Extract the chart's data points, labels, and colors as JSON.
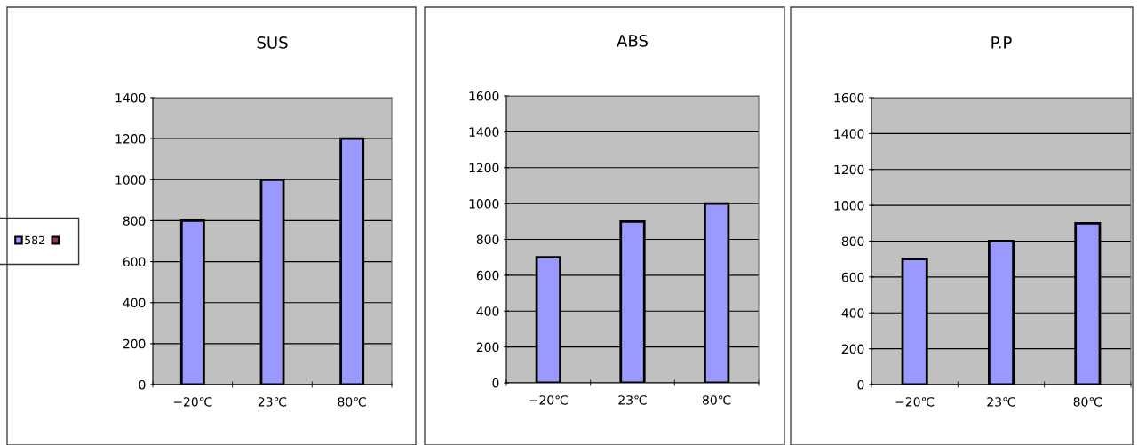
{
  "chart_data": [
    {
      "type": "bar",
      "title": "SUS",
      "categories": [
        "−20℃",
        "23℃",
        "80℃"
      ],
      "series": [
        {
          "name": "582",
          "color": "#9999ff",
          "values": [
            800,
            1000,
            1200
          ]
        },
        {
          "color": "#993366",
          "values": [
            null,
            null,
            null
          ]
        }
      ],
      "ylim": [
        0,
        1400
      ],
      "yticks": [
        0,
        200,
        400,
        600,
        800,
        1000,
        1200,
        1400
      ],
      "grid": "y",
      "legend": "left"
    },
    {
      "type": "bar",
      "title": "ABS",
      "categories": [
        "−20℃",
        "23℃",
        "80℃"
      ],
      "series": [
        {
          "color": "#9999ff",
          "values": [
            700,
            900,
            1000
          ]
        }
      ],
      "ylim": [
        0,
        1600
      ],
      "yticks": [
        0,
        200,
        400,
        600,
        800,
        1000,
        1200,
        1400,
        1600
      ],
      "grid": "y"
    },
    {
      "type": "bar",
      "title": "P.P",
      "categories": [
        "−20℃",
        "23℃",
        "80℃"
      ],
      "series": [
        {
          "color": "#9999ff",
          "values": [
            700,
            800,
            900
          ]
        }
      ],
      "ylim": [
        0,
        1600
      ],
      "yticks": [
        0,
        200,
        400,
        600,
        800,
        1000,
        1200,
        1400,
        1600
      ],
      "grid": "y"
    }
  ]
}
